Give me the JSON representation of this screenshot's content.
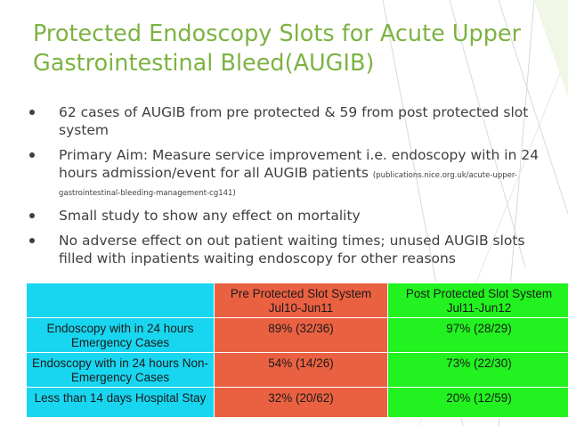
{
  "slide": {
    "title_line1": "Protected Endoscopy Slots for Acute Upper",
    "title_line2": "Gastrointestinal Bleed(AUGIB)",
    "bullets": [
      {
        "text": "62 cases of AUGIB from pre protected & 59 from post protected slot system"
      },
      {
        "text": "Primary Aim: Measure service improvement i.e. endoscopy with in 24 hours admission/event for all AUGIB patients",
        "ref": "(publications.nice.org.uk/acute-upper-gastrointestinal-bleeding-management-cg141)"
      },
      {
        "text": "Small study to show any effect on mortality"
      },
      {
        "text": "No adverse effect on out patient waiting times; unused AUGIB slots filled with inpatients waiting endoscopy for other reasons"
      }
    ],
    "colors": {
      "title": "#7cb342",
      "col1": "#19d6f0",
      "col2": "#ea6142",
      "col3": "#22f21f"
    }
  },
  "table": {
    "headers": [
      {
        "label": "",
        "sub": ""
      },
      {
        "label": "Pre Protected Slot System",
        "sub": "Jul10-Jun11"
      },
      {
        "label": "Post Protected Slot System",
        "sub": "Jul11-Jun12"
      }
    ],
    "rows": [
      {
        "metric": "Endoscopy with in 24 hours Emergency Cases",
        "pre": "89% (32/36)",
        "post": "97% (28/29)"
      },
      {
        "metric": "Endoscopy with in 24 hours Non-Emergency Cases",
        "pre": "54% (14/26)",
        "post": "73% (22/30)"
      },
      {
        "metric": "Less than 14 days Hospital Stay",
        "pre": "32% (20/62)",
        "post": "20% (12/59)"
      }
    ]
  }
}
